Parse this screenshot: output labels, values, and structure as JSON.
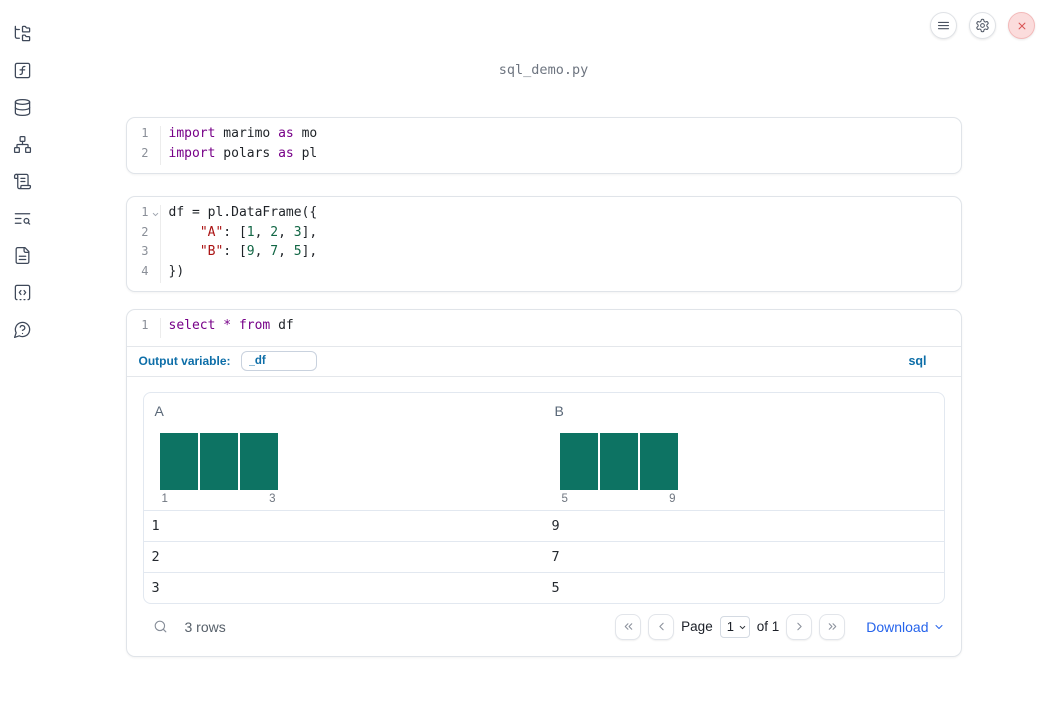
{
  "app": {
    "title": "sql_demo.py"
  },
  "toolbar": {
    "menu_icon": "hamburger-menu",
    "settings_icon": "gear",
    "close_icon": "close-x"
  },
  "sidebar": {
    "items": [
      {
        "name": "file-tree"
      },
      {
        "name": "functions"
      },
      {
        "name": "database"
      },
      {
        "name": "dependency-graph"
      },
      {
        "name": "logs-scroll"
      },
      {
        "name": "list-search"
      },
      {
        "name": "document"
      },
      {
        "name": "code-scratchpad"
      },
      {
        "name": "help-chat"
      }
    ]
  },
  "cells": [
    {
      "name": "imports-cell",
      "lines": [
        {
          "num": "1",
          "tokens": [
            {
              "t": "import",
              "c": "k"
            },
            {
              "t": " marimo ",
              "c": "p"
            },
            {
              "t": "as",
              "c": "k"
            },
            {
              "t": " mo",
              "c": "p"
            }
          ]
        },
        {
          "num": "2",
          "tokens": [
            {
              "t": "import",
              "c": "k"
            },
            {
              "t": " polars ",
              "c": "p"
            },
            {
              "t": "as",
              "c": "k"
            },
            {
              "t": " pl",
              "c": "p"
            }
          ]
        }
      ]
    },
    {
      "name": "dataframe-cell",
      "lines": [
        {
          "num": "1",
          "fold": true,
          "tokens": [
            {
              "t": "df = pl.DataFrame({",
              "c": "p"
            }
          ]
        },
        {
          "num": "2",
          "tokens": [
            {
              "t": "    ",
              "c": "p"
            },
            {
              "t": "\"A\"",
              "c": "s"
            },
            {
              "t": ": [",
              "c": "p"
            },
            {
              "t": "1",
              "c": "n"
            },
            {
              "t": ", ",
              "c": "p"
            },
            {
              "t": "2",
              "c": "n"
            },
            {
              "t": ", ",
              "c": "p"
            },
            {
              "t": "3",
              "c": "n"
            },
            {
              "t": "],",
              "c": "p"
            }
          ]
        },
        {
          "num": "3",
          "tokens": [
            {
              "t": "    ",
              "c": "p"
            },
            {
              "t": "\"B\"",
              "c": "s"
            },
            {
              "t": ": [",
              "c": "p"
            },
            {
              "t": "9",
              "c": "n"
            },
            {
              "t": ", ",
              "c": "p"
            },
            {
              "t": "7",
              "c": "n"
            },
            {
              "t": ", ",
              "c": "p"
            },
            {
              "t": "5",
              "c": "n"
            },
            {
              "t": "],",
              "c": "p"
            }
          ]
        },
        {
          "num": "4",
          "tokens": [
            {
              "t": "})",
              "c": "p"
            }
          ]
        }
      ]
    },
    {
      "name": "sql-editor",
      "lines": [
        {
          "num": "1",
          "tokens": [
            {
              "t": "select",
              "c": "k"
            },
            {
              "t": " ",
              "c": "p"
            },
            {
              "t": "*",
              "c": "k"
            },
            {
              "t": " ",
              "c": "p"
            },
            {
              "t": "from",
              "c": "k"
            },
            {
              "t": " df",
              "c": "p"
            }
          ]
        }
      ]
    }
  ],
  "sql": {
    "output_variable_label": "Output variable:",
    "output_variable_value": "_df",
    "language_badge": "sql"
  },
  "table": {
    "columns": [
      {
        "name": "A",
        "histogram": {
          "bars": [
            1,
            1,
            1
          ],
          "min_label": "1",
          "max_label": "3"
        }
      },
      {
        "name": "B",
        "histogram": {
          "bars": [
            1,
            1,
            1
          ],
          "min_label": "5",
          "max_label": "9"
        }
      }
    ],
    "rows": [
      [
        "1",
        "9"
      ],
      [
        "2",
        "7"
      ],
      [
        "3",
        "5"
      ]
    ],
    "footer": {
      "row_count": "3 rows",
      "page_label": "Page",
      "page_value": "1",
      "of_label": "of 1",
      "download_label": "Download"
    }
  },
  "colors": {
    "keyword": "#770088",
    "string": "#aa1111",
    "number": "#116644",
    "histogram_bar": "#0d7363",
    "accent": "#0d6ea8",
    "link": "#2563eb",
    "close_red": "#d95454"
  }
}
